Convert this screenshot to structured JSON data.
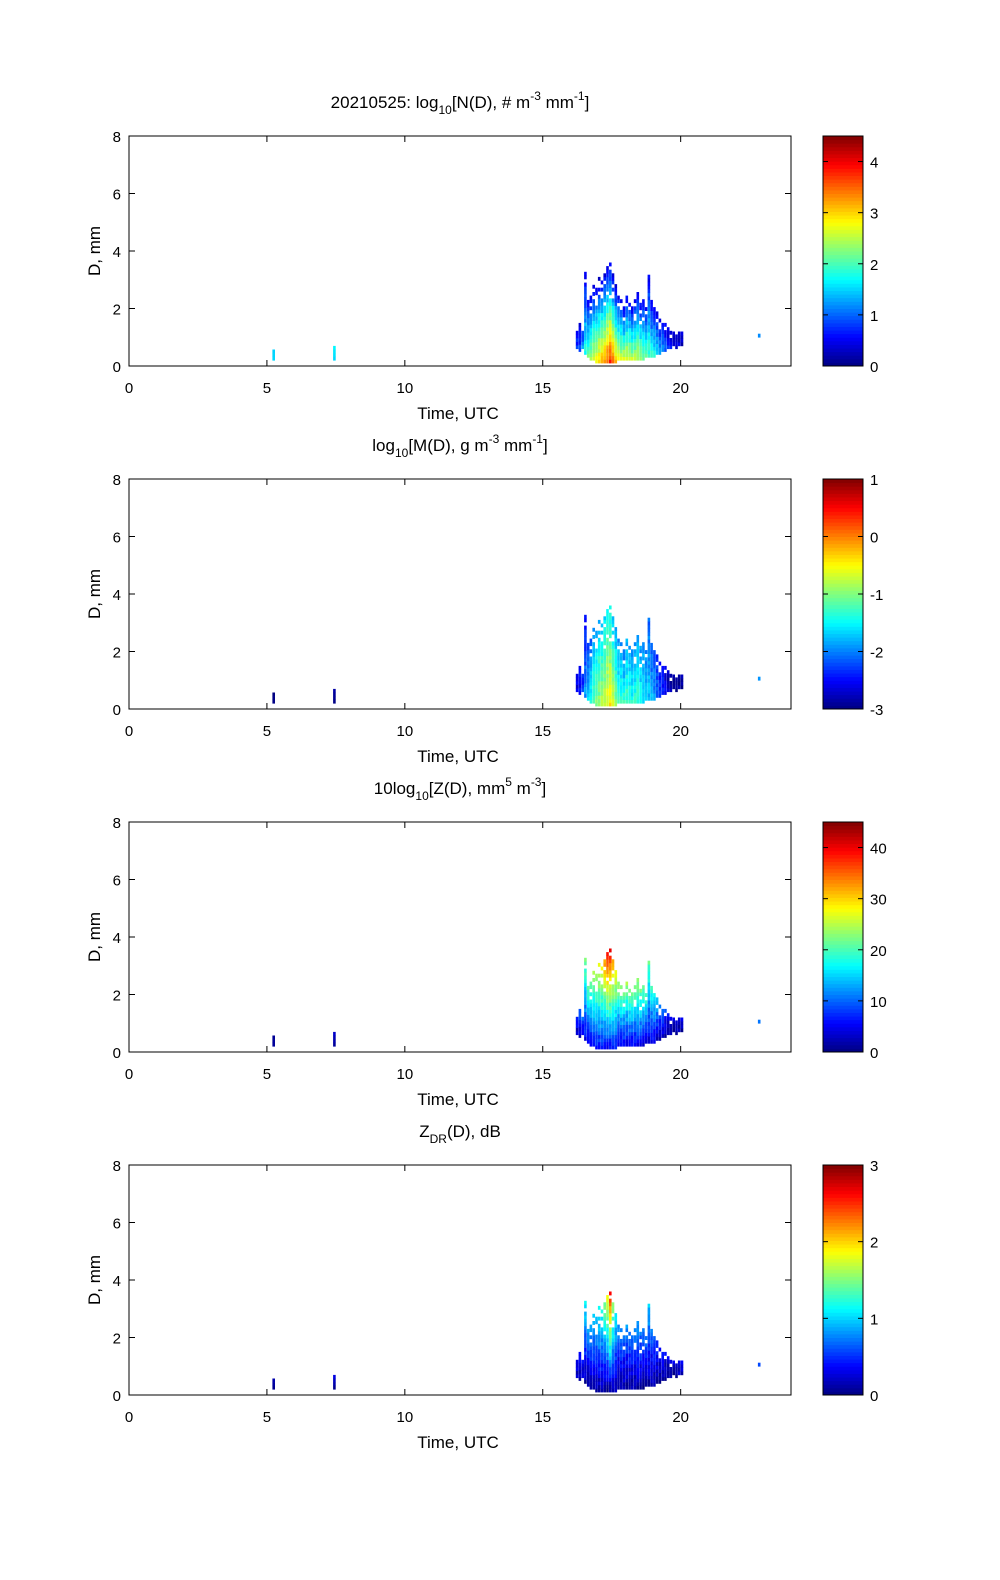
{
  "chart_data": {
    "type": "heatmap",
    "shared": {
      "xlabel": "Time, UTC",
      "ylabel": "D, mm",
      "xlim": [
        0,
        24
      ],
      "ylim": [
        0,
        8
      ],
      "xticks": [
        0,
        5,
        10,
        15,
        20
      ],
      "yticks": [
        0,
        2,
        4,
        6,
        8
      ],
      "d_bin_mm": 0.125,
      "t_bin_h": 0.1,
      "columns_t_dmin_dmax": [
        [
          5.2,
          0.2,
          0.7
        ],
        [
          7.4,
          0.2,
          0.7
        ],
        [
          16.2,
          0.6,
          1.3
        ],
        [
          16.3,
          0.5,
          1.4
        ],
        [
          16.4,
          0.6,
          1.4
        ],
        [
          16.5,
          0.4,
          3.3
        ],
        [
          16.6,
          0.3,
          2.2
        ],
        [
          16.7,
          0.2,
          2.5
        ],
        [
          16.8,
          0.2,
          2.8
        ],
        [
          16.9,
          0.1,
          2.9
        ],
        [
          17.0,
          0.1,
          3.0
        ],
        [
          17.1,
          0.1,
          3.1
        ],
        [
          17.2,
          0.1,
          3.2
        ],
        [
          17.3,
          0.1,
          3.4
        ],
        [
          17.4,
          0.1,
          3.6
        ],
        [
          17.5,
          0.1,
          3.2
        ],
        [
          17.6,
          0.1,
          2.8
        ],
        [
          17.7,
          0.2,
          2.4
        ],
        [
          17.8,
          0.2,
          2.3
        ],
        [
          17.9,
          0.2,
          2.0
        ],
        [
          18.0,
          0.2,
          2.4
        ],
        [
          18.1,
          0.2,
          2.2
        ],
        [
          18.2,
          0.2,
          2.0
        ],
        [
          18.3,
          0.2,
          2.3
        ],
        [
          18.4,
          0.2,
          2.6
        ],
        [
          18.5,
          0.2,
          2.2
        ],
        [
          18.6,
          0.2,
          2.4
        ],
        [
          18.7,
          0.3,
          2.0
        ],
        [
          18.8,
          0.3,
          3.3
        ],
        [
          18.9,
          0.3,
          2.2
        ],
        [
          19.0,
          0.3,
          2.0
        ],
        [
          19.1,
          0.4,
          1.8
        ],
        [
          19.2,
          0.4,
          1.6
        ],
        [
          19.3,
          0.5,
          1.5
        ],
        [
          19.4,
          0.5,
          1.4
        ],
        [
          19.5,
          0.6,
          1.3
        ],
        [
          19.6,
          0.6,
          1.2
        ],
        [
          19.7,
          0.7,
          1.1
        ],
        [
          19.8,
          0.6,
          1.1
        ],
        [
          19.9,
          0.7,
          1.2
        ],
        [
          20.0,
          0.7,
          1.2
        ],
        [
          22.8,
          1.0,
          1.1
        ]
      ]
    },
    "panels": [
      {
        "title": [
          {
            "t": "20210525: log"
          },
          {
            "t": "10",
            "sub": true
          },
          {
            "t": "[N(D), # m"
          },
          {
            "t": "-3",
            "sup": true
          },
          {
            "t": " mm"
          },
          {
            "t": "-1",
            "sup": true
          },
          {
            "t": "]"
          }
        ],
        "clim": [
          0,
          4.5
        ],
        "cticks": [
          0,
          1,
          2,
          3,
          4
        ],
        "low_high_values": [
          [
            1.6,
            1.6
          ],
          [
            1.6,
            1.6
          ],
          [
            0.8,
            0.4
          ],
          [
            1.0,
            0.4
          ],
          [
            1.2,
            0.5
          ],
          [
            1.8,
            0.3
          ],
          [
            2.2,
            0.4
          ],
          [
            2.4,
            0.3
          ],
          [
            2.6,
            0.3
          ],
          [
            2.8,
            0.3
          ],
          [
            3.0,
            0.3
          ],
          [
            3.1,
            0.3
          ],
          [
            3.3,
            0.3
          ],
          [
            3.6,
            0.3
          ],
          [
            3.8,
            0.3
          ],
          [
            3.4,
            0.3
          ],
          [
            3.0,
            0.3
          ],
          [
            2.8,
            0.4
          ],
          [
            2.6,
            0.4
          ],
          [
            2.6,
            0.4
          ],
          [
            2.7,
            0.4
          ],
          [
            2.6,
            0.4
          ],
          [
            2.5,
            0.4
          ],
          [
            2.5,
            0.4
          ],
          [
            2.5,
            0.4
          ],
          [
            2.4,
            0.4
          ],
          [
            2.3,
            0.4
          ],
          [
            2.2,
            0.4
          ],
          [
            2.0,
            0.3
          ],
          [
            1.9,
            0.4
          ],
          [
            1.8,
            0.4
          ],
          [
            1.6,
            0.4
          ],
          [
            1.4,
            0.4
          ],
          [
            1.2,
            0.4
          ],
          [
            1.0,
            0.4
          ],
          [
            0.8,
            0.3
          ],
          [
            0.6,
            0.3
          ],
          [
            0.5,
            0.3
          ],
          [
            0.4,
            0.3
          ],
          [
            0.4,
            0.3
          ],
          [
            0.3,
            0.3
          ],
          [
            1.2,
            1.2
          ]
        ]
      },
      {
        "title": [
          {
            "t": "log"
          },
          {
            "t": "10",
            "sub": true
          },
          {
            "t": "[M(D), g m"
          },
          {
            "t": "-3",
            "sup": true
          },
          {
            "t": " mm"
          },
          {
            "t": "-1",
            "sup": true
          },
          {
            "t": "]"
          }
        ],
        "clim": [
          -3,
          1
        ],
        "cticks": [
          -3,
          -2,
          -1,
          0,
          1
        ],
        "low_high_values": [
          [
            -2.9,
            -2.9
          ],
          [
            -2.9,
            -2.9
          ],
          [
            -2.6,
            -2.6
          ],
          [
            -2.4,
            -2.5
          ],
          [
            -2.3,
            -2.5
          ],
          [
            -1.9,
            -2.6
          ],
          [
            -1.6,
            -2.4
          ],
          [
            -1.4,
            -2.3
          ],
          [
            -1.2,
            -2.0
          ],
          [
            -1.0,
            -1.9
          ],
          [
            -0.9,
            -1.8
          ],
          [
            -0.8,
            -1.8
          ],
          [
            -0.7,
            -1.7
          ],
          [
            -0.5,
            -1.6
          ],
          [
            -0.4,
            -1.6
          ],
          [
            -0.7,
            -1.8
          ],
          [
            -1.0,
            -1.9
          ],
          [
            -1.2,
            -2.0
          ],
          [
            -1.3,
            -2.0
          ],
          [
            -1.3,
            -2.1
          ],
          [
            -1.2,
            -1.9
          ],
          [
            -1.3,
            -2.0
          ],
          [
            -1.4,
            -2.0
          ],
          [
            -1.3,
            -2.0
          ],
          [
            -1.3,
            -1.9
          ],
          [
            -1.4,
            -2.0
          ],
          [
            -1.5,
            -2.0
          ],
          [
            -1.6,
            -2.1
          ],
          [
            -1.7,
            -2.2
          ],
          [
            -1.8,
            -2.2
          ],
          [
            -1.9,
            -2.3
          ],
          [
            -2.1,
            -2.4
          ],
          [
            -2.2,
            -2.5
          ],
          [
            -2.4,
            -2.6
          ],
          [
            -2.5,
            -2.7
          ],
          [
            -2.7,
            -2.8
          ],
          [
            -2.8,
            -2.9
          ],
          [
            -2.8,
            -2.9
          ],
          [
            -2.9,
            -2.9
          ],
          [
            -2.9,
            -2.9
          ],
          [
            -2.9,
            -2.9
          ],
          [
            -1.9,
            -1.9
          ]
        ]
      },
      {
        "title": [
          {
            "t": "10log"
          },
          {
            "t": "10",
            "sub": true
          },
          {
            "t": "[Z(D),  mm"
          },
          {
            "t": "5",
            "sup": true
          },
          {
            "t": " m"
          },
          {
            "t": "-3",
            "sup": true
          },
          {
            "t": "]"
          }
        ],
        "clim": [
          0,
          45
        ],
        "cticks": [
          0,
          10,
          20,
          30,
          40
        ],
        "low_high_values": [
          [
            2,
            2
          ],
          [
            2,
            3
          ],
          [
            3,
            8
          ],
          [
            4,
            10
          ],
          [
            4,
            12
          ],
          [
            5,
            22
          ],
          [
            5,
            20
          ],
          [
            5,
            22
          ],
          [
            6,
            25
          ],
          [
            6,
            27
          ],
          [
            6,
            28
          ],
          [
            6,
            30
          ],
          [
            6,
            33
          ],
          [
            6,
            38
          ],
          [
            6,
            40
          ],
          [
            6,
            33
          ],
          [
            6,
            28
          ],
          [
            5,
            24
          ],
          [
            5,
            24
          ],
          [
            5,
            22
          ],
          [
            5,
            24
          ],
          [
            5,
            23
          ],
          [
            5,
            22
          ],
          [
            5,
            23
          ],
          [
            5,
            25
          ],
          [
            5,
            22
          ],
          [
            5,
            23
          ],
          [
            4,
            20
          ],
          [
            4,
            22
          ],
          [
            4,
            19
          ],
          [
            4,
            17
          ],
          [
            3,
            15
          ],
          [
            3,
            12
          ],
          [
            3,
            10
          ],
          [
            2,
            8
          ],
          [
            2,
            6
          ],
          [
            2,
            5
          ],
          [
            2,
            4
          ],
          [
            2,
            4
          ],
          [
            2,
            4
          ],
          [
            2,
            4
          ],
          [
            11,
            11
          ]
        ]
      },
      {
        "title": [
          {
            "t": "Z"
          },
          {
            "t": "DR",
            "sub": true
          },
          {
            "t": "(D), dB"
          }
        ],
        "clim": [
          0,
          3
        ],
        "cticks": [
          0,
          1,
          2,
          3
        ],
        "low_high_values": [
          [
            0.1,
            0.3
          ],
          [
            0.1,
            0.3
          ],
          [
            0.2,
            0.3
          ],
          [
            0.2,
            0.4
          ],
          [
            0.2,
            0.4
          ],
          [
            0.1,
            1.1
          ],
          [
            0.1,
            0.8
          ],
          [
            0.1,
            0.9
          ],
          [
            0.1,
            1.0
          ],
          [
            0.1,
            1.1
          ],
          [
            0.1,
            1.2
          ],
          [
            0.1,
            1.3
          ],
          [
            0.1,
            1.5
          ],
          [
            0.1,
            1.8
          ],
          [
            0.1,
            2.6
          ],
          [
            0.1,
            1.6
          ],
          [
            0.1,
            1.1
          ],
          [
            0.1,
            0.8
          ],
          [
            0.1,
            0.8
          ],
          [
            0.1,
            0.7
          ],
          [
            0.1,
            0.8
          ],
          [
            0.1,
            0.7
          ],
          [
            0.1,
            0.7
          ],
          [
            0.1,
            0.8
          ],
          [
            0.1,
            0.9
          ],
          [
            0.1,
            0.7
          ],
          [
            0.1,
            0.8
          ],
          [
            0.1,
            0.7
          ],
          [
            0.1,
            1.0
          ],
          [
            0.1,
            0.7
          ],
          [
            0.1,
            0.6
          ],
          [
            0.1,
            0.5
          ],
          [
            0.1,
            0.4
          ],
          [
            0.1,
            0.4
          ],
          [
            0.1,
            0.3
          ],
          [
            0.1,
            0.3
          ],
          [
            0.1,
            0.3
          ],
          [
            0.1,
            0.3
          ],
          [
            0.1,
            0.2
          ],
          [
            0.2,
            0.3
          ],
          [
            0.2,
            0.3
          ],
          [
            0.6,
            0.6
          ]
        ]
      }
    ]
  }
}
